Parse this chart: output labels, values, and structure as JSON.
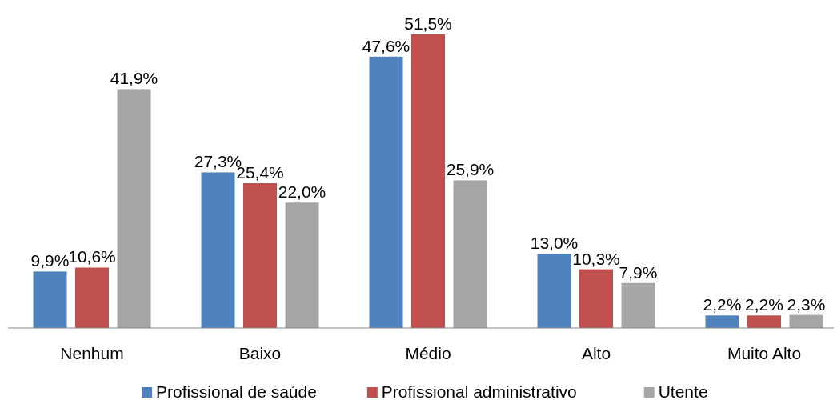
{
  "chart_data": {
    "type": "bar",
    "categories": [
      "Nenhum",
      "Baixo",
      "Médio",
      "Alto",
      "Muito Alto"
    ],
    "series": [
      {
        "name": "Profissional de saúde",
        "color": "#4f81bd",
        "values": [
          9.9,
          27.3,
          47.6,
          13.0,
          2.2
        ],
        "value_labels": [
          "9,9%",
          "27,3%",
          "47,6%",
          "13,0%",
          "2,2%"
        ]
      },
      {
        "name": "Profissional administrativo",
        "color": "#c0504d",
        "values": [
          10.6,
          25.4,
          51.5,
          10.3,
          2.2
        ],
        "value_labels": [
          "10,6%",
          "25,4%",
          "51,5%",
          "10,3%",
          "2,2%"
        ]
      },
      {
        "name": "Utente",
        "color": "#a5a5a5",
        "values": [
          41.9,
          22.0,
          25.9,
          7.9,
          2.3
        ],
        "value_labels": [
          "41,9%",
          "22,0%",
          "25,9%",
          "7,9%",
          "2,3%"
        ]
      }
    ],
    "legend": "bottom"
  }
}
